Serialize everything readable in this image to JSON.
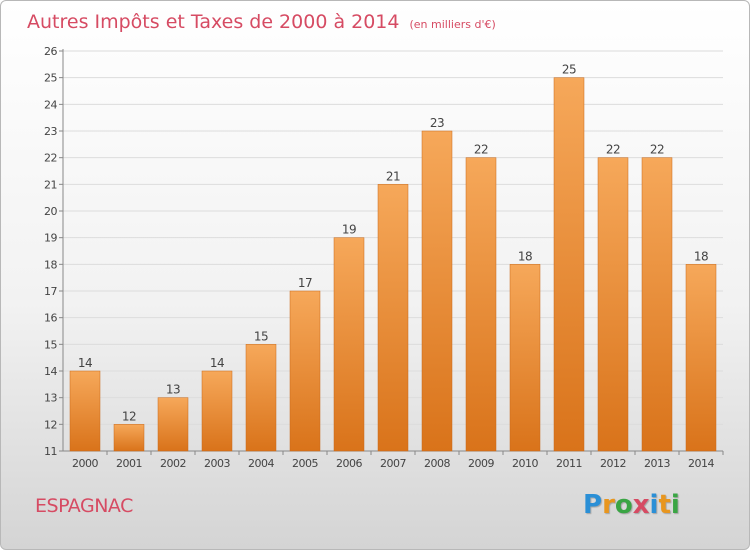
{
  "title": "Autres Impôts et Taxes de 2000 à 2014",
  "subtitle": "(en milliers d'€)",
  "commune": "ESPAGNAC",
  "logo": {
    "text": "Proxiti",
    "colors": [
      "#2a8fd6",
      "#e8961e",
      "#3aa544",
      "#d64b63",
      "#2a8fd6",
      "#e8961e",
      "#3aa544"
    ]
  },
  "colors": {
    "title": "#d64b63",
    "bar_light": "#f6a85a",
    "bar_dark": "#d9731a"
  },
  "chart_data": {
    "type": "bar",
    "title": "Autres Impôts et Taxes de 2000 à 2014",
    "subtitle": "(en milliers d'€)",
    "categories": [
      "2000",
      "2001",
      "2002",
      "2003",
      "2004",
      "2005",
      "2006",
      "2007",
      "2008",
      "2009",
      "2010",
      "2011",
      "2012",
      "2013",
      "2014"
    ],
    "values": [
      14,
      12,
      13,
      14,
      15,
      17,
      19,
      21,
      23,
      22,
      18,
      25,
      22,
      22,
      18
    ],
    "ylim": [
      11,
      26
    ],
    "yticks": [
      11,
      12,
      13,
      14,
      15,
      16,
      17,
      18,
      19,
      20,
      21,
      22,
      23,
      24,
      25,
      26
    ],
    "grid": true,
    "legend": "none"
  }
}
